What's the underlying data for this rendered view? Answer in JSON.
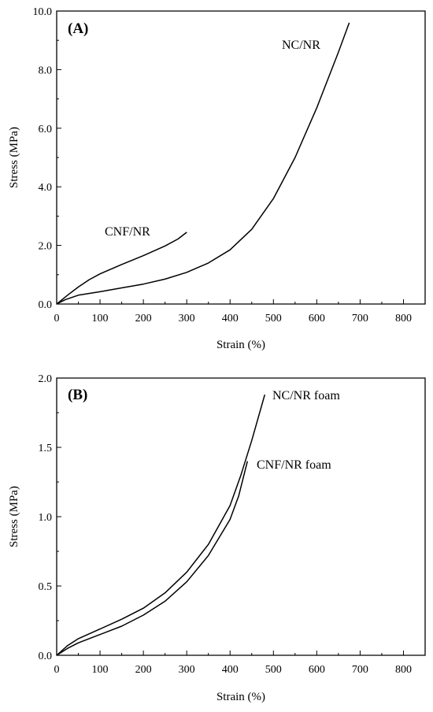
{
  "chart_data": [
    {
      "type": "line",
      "panel_label": "(A)",
      "xlabel": "Strain (%)",
      "ylabel": "Stress (MPa)",
      "xlim": [
        0,
        850
      ],
      "ylim": [
        0,
        10
      ],
      "xticks": [
        0,
        100,
        200,
        300,
        400,
        500,
        600,
        700,
        800
      ],
      "yticks": [
        0,
        2,
        4,
        6,
        8,
        10
      ],
      "ytick_labels": [
        "0.0",
        "2.0",
        "4.0",
        "6.0",
        "8.0",
        "10.0"
      ],
      "grid": false,
      "series": [
        {
          "name": "CNF/NR",
          "x": [
            0,
            25,
            50,
            75,
            100,
            150,
            200,
            250,
            280,
            300
          ],
          "y": [
            0,
            0.3,
            0.58,
            0.83,
            1.03,
            1.35,
            1.65,
            1.98,
            2.22,
            2.45
          ]
        },
        {
          "name": "NC/NR",
          "x": [
            0,
            20,
            50,
            100,
            150,
            200,
            250,
            300,
            350,
            400,
            450,
            500,
            550,
            600,
            650,
            675
          ],
          "y": [
            0,
            0.15,
            0.3,
            0.42,
            0.55,
            0.68,
            0.85,
            1.08,
            1.4,
            1.85,
            2.55,
            3.6,
            5.0,
            6.7,
            8.6,
            9.6
          ]
        }
      ]
    },
    {
      "type": "line",
      "panel_label": "(B)",
      "xlabel": "Strain (%)",
      "ylabel": "Stress (MPa)",
      "xlim": [
        0,
        850
      ],
      "ylim": [
        0,
        2.0
      ],
      "xticks": [
        0,
        100,
        200,
        300,
        400,
        500,
        600,
        700,
        800
      ],
      "yticks": [
        0,
        0.5,
        1.0,
        1.5,
        2.0
      ],
      "ytick_labels": [
        "0.0",
        "0.5",
        "1.0",
        "1.5",
        "2.0"
      ],
      "grid": false,
      "series": [
        {
          "name": "NC/NR foam",
          "x": [
            0,
            25,
            50,
            100,
            150,
            200,
            250,
            300,
            350,
            400,
            425,
            450,
            480
          ],
          "y": [
            0,
            0.07,
            0.12,
            0.19,
            0.26,
            0.34,
            0.45,
            0.6,
            0.8,
            1.08,
            1.3,
            1.55,
            1.88
          ]
        },
        {
          "name": "CNF/NR foam",
          "x": [
            0,
            25,
            50,
            100,
            150,
            200,
            250,
            300,
            350,
            400,
            420,
            440
          ],
          "y": [
            0,
            0.05,
            0.09,
            0.15,
            0.21,
            0.29,
            0.39,
            0.53,
            0.72,
            0.98,
            1.15,
            1.4
          ]
        }
      ]
    }
  ]
}
